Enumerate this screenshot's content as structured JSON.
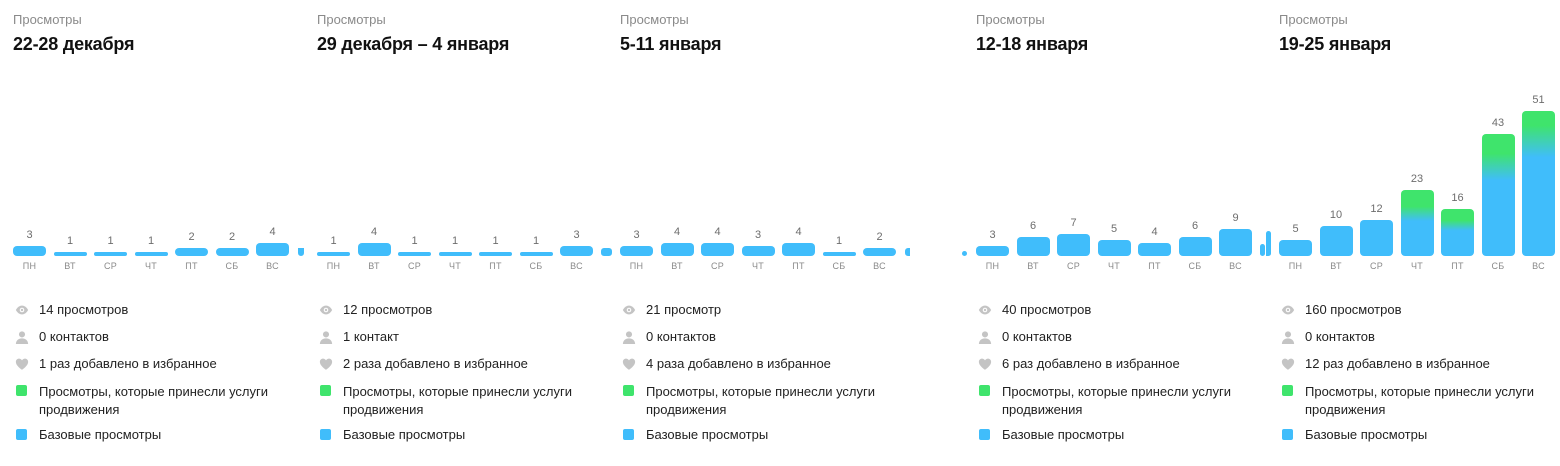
{
  "colors": {
    "base": "#40bdfb",
    "promo": "#3fe46c",
    "label": "#8a8a8a",
    "title": "#111111",
    "icon": "#b9b9b9"
  },
  "legend": {
    "promo_label": "Просмотры, которые принесли услуги продвижения",
    "base_label": "Базовые просмотры"
  },
  "weeks": [
    {
      "label": "Просмотры",
      "title": "22-28 декабря",
      "days": [
        "ПН",
        "ВТ",
        "СР",
        "ЧТ",
        "ПТ",
        "СБ",
        "ВС"
      ],
      "values": [
        3,
        1,
        1,
        1,
        2,
        2,
        4
      ],
      "promo": [
        0,
        0,
        0,
        0,
        0,
        0,
        0
      ],
      "stats": {
        "views": "14 просмотров",
        "contacts": "0 контактов",
        "favorites": "1 раз добавлено в избранное"
      }
    },
    {
      "label": "Просмотры",
      "title": "29 декабря – 4 января",
      "days": [
        "ПН",
        "ВТ",
        "СР",
        "ЧТ",
        "ПТ",
        "СБ",
        "ВС"
      ],
      "values": [
        1,
        4,
        1,
        1,
        1,
        1,
        3
      ],
      "promo": [
        0,
        0,
        0,
        0,
        0,
        0,
        0
      ],
      "stats": {
        "views": "12 просмотров",
        "contacts": "1 контакт",
        "favorites": "2 раза добавлено в избранное"
      }
    },
    {
      "label": "Просмотры",
      "title": "5-11 января",
      "days": [
        "ПН",
        "ВТ",
        "СР",
        "ЧТ",
        "ПТ",
        "СБ",
        "ВС"
      ],
      "values": [
        3,
        4,
        4,
        3,
        4,
        1,
        2
      ],
      "promo": [
        0,
        0,
        0,
        0,
        0,
        0,
        0
      ],
      "stats": {
        "views": "21 просмотр",
        "contacts": "0 контактов",
        "favorites": "4 раза добавлено в избранное"
      }
    },
    {
      "label": "Просмотры",
      "title": "12-18 января",
      "days": [
        "ПН",
        "ВТ",
        "СР",
        "ЧТ",
        "ПТ",
        "СБ",
        "ВС"
      ],
      "values": [
        3,
        6,
        7,
        5,
        4,
        6,
        9
      ],
      "promo": [
        0,
        0,
        0,
        0,
        0,
        0,
        0
      ],
      "stats": {
        "views": "40 просмотров",
        "contacts": "0 контактов",
        "favorites": "6 раз добавлено в избранное"
      }
    },
    {
      "label": "Просмотры",
      "title": "19-25 января",
      "days": [
        "ПН",
        "ВТ",
        "СР",
        "ЧТ",
        "ПТ",
        "СБ",
        "ВС"
      ],
      "values": [
        5,
        10,
        12,
        23,
        16,
        43,
        51
      ],
      "promo": [
        0,
        0,
        0,
        9,
        6,
        13,
        12
      ],
      "stats": {
        "views": "160 просмотров",
        "contacts": "0 контактов",
        "favorites": "12 раз добавлено в избранное"
      }
    }
  ],
  "chart_data": [
    {
      "type": "bar",
      "title": "Просмотры 22-28 декабря",
      "categories": [
        "ПН",
        "ВТ",
        "СР",
        "ЧТ",
        "ПТ",
        "СБ",
        "ВС"
      ],
      "series": [
        {
          "name": "Базовые просмотры",
          "values": [
            3,
            1,
            1,
            1,
            2,
            2,
            4
          ]
        },
        {
          "name": "Просмотры, которые принесли услуги продвижения",
          "values": [
            0,
            0,
            0,
            0,
            0,
            0,
            0
          ]
        }
      ],
      "totals": [
        3,
        1,
        1,
        1,
        2,
        2,
        4
      ],
      "stacked": true,
      "xlabel": "",
      "ylabel": "",
      "grid": false
    },
    {
      "type": "bar",
      "title": "Просмотры 29 декабря – 4 января",
      "categories": [
        "ПН",
        "ВТ",
        "СР",
        "ЧТ",
        "ПТ",
        "СБ",
        "ВС"
      ],
      "series": [
        {
          "name": "Базовые просмотры",
          "values": [
            1,
            4,
            1,
            1,
            1,
            1,
            3
          ]
        },
        {
          "name": "Просмотры, которые принесли услуги продвижения",
          "values": [
            0,
            0,
            0,
            0,
            0,
            0,
            0
          ]
        }
      ],
      "totals": [
        1,
        4,
        1,
        1,
        1,
        1,
        3
      ],
      "stacked": true,
      "xlabel": "",
      "ylabel": "",
      "grid": false
    },
    {
      "type": "bar",
      "title": "Просмотры 5-11 января",
      "categories": [
        "ПН",
        "ВТ",
        "СР",
        "ЧТ",
        "ПТ",
        "СБ",
        "ВС"
      ],
      "series": [
        {
          "name": "Базовые просмотры",
          "values": [
            3,
            4,
            4,
            3,
            4,
            1,
            2
          ]
        },
        {
          "name": "Просмотры, которые принесли услуги продвижения",
          "values": [
            0,
            0,
            0,
            0,
            0,
            0,
            0
          ]
        }
      ],
      "totals": [
        3,
        4,
        4,
        3,
        4,
        1,
        2
      ],
      "stacked": true,
      "xlabel": "",
      "ylabel": "",
      "grid": false
    },
    {
      "type": "bar",
      "title": "Просмотры 12-18 января",
      "categories": [
        "ПН",
        "ВТ",
        "СР",
        "ЧТ",
        "ПТ",
        "СБ",
        "ВС"
      ],
      "series": [
        {
          "name": "Базовые просмотры",
          "values": [
            3,
            6,
            7,
            5,
            4,
            6,
            9
          ]
        },
        {
          "name": "Просмотры, которые принесли услуги продвижения",
          "values": [
            0,
            0,
            0,
            0,
            0,
            0,
            0
          ]
        }
      ],
      "totals": [
        3,
        6,
        7,
        5,
        4,
        6,
        9
      ],
      "stacked": true,
      "xlabel": "",
      "ylabel": "",
      "grid": false
    },
    {
      "type": "bar",
      "title": "Просмотры 19-25 января",
      "categories": [
        "ПН",
        "ВТ",
        "СР",
        "ЧТ",
        "ПТ",
        "СБ",
        "ВС"
      ],
      "series": [
        {
          "name": "Базовые просмотры",
          "values": [
            5,
            10,
            12,
            14,
            10,
            30,
            39
          ]
        },
        {
          "name": "Просмотры, которые принесли услуги продвижения",
          "values": [
            0,
            0,
            0,
            9,
            6,
            13,
            12
          ]
        }
      ],
      "totals": [
        5,
        10,
        12,
        23,
        16,
        43,
        51
      ],
      "stacked": true,
      "xlabel": "",
      "ylabel": "",
      "grid": false
    }
  ]
}
